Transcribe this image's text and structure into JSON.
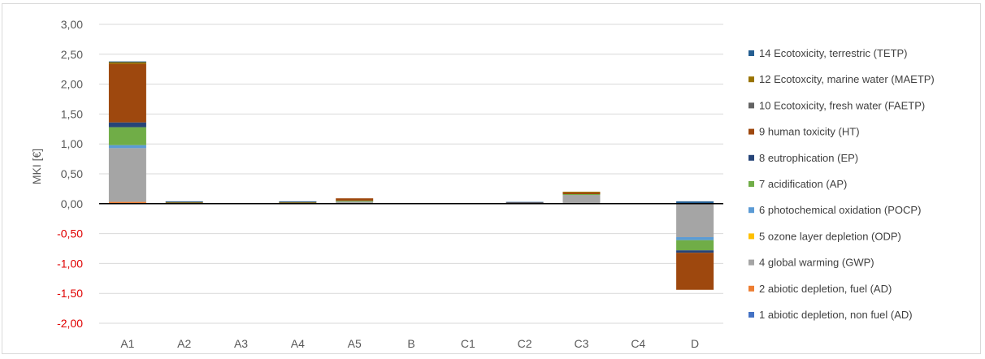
{
  "chart_data": {
    "type": "bar",
    "stacked": true,
    "ylabel": "MKI [€]",
    "ylim": [
      -2.0,
      3.0
    ],
    "yticks": [
      "3,00",
      "2,50",
      "2,00",
      "1,50",
      "1,00",
      "0,50",
      "0,00",
      "-0,50",
      "-1,00",
      "-1,50",
      "-2,00"
    ],
    "ytick_values": [
      3.0,
      2.5,
      2.0,
      1.5,
      1.0,
      0.5,
      0.0,
      -0.5,
      -1.0,
      -1.5,
      -2.0
    ],
    "negative_tick_color": "#e00000",
    "positive_tick_color": "#595959",
    "grid": true,
    "legend_position": "right",
    "categories": [
      "A1",
      "A2",
      "A3",
      "A4",
      "A5",
      "B",
      "C1",
      "C2",
      "C3",
      "C4",
      "D"
    ],
    "series": [
      {
        "name": "1 abiotic depletion, non fuel (AD)",
        "color": "#4472c4",
        "values": [
          0.0,
          0.0,
          0.0,
          0.0,
          0.0,
          0.0,
          0.0,
          0.0,
          0.0,
          0.0,
          0.0
        ]
      },
      {
        "name": "2 abiotic depletion, fuel (AD)",
        "color": "#ed7d31",
        "values": [
          0.03,
          0.0,
          0.0,
          0.0,
          0.0,
          0.0,
          0.0,
          0.0,
          0.0,
          0.0,
          -0.01
        ]
      },
      {
        "name": "4 global warming (GWP)",
        "color": "#a5a5a5",
        "values": [
          0.9,
          0.01,
          0.0,
          0.01,
          0.04,
          0.0,
          0.0,
          0.01,
          0.15,
          0.0,
          -0.55
        ]
      },
      {
        "name": "5 ozone layer depletion (ODP)",
        "color": "#ffc000",
        "values": [
          0.0,
          0.0,
          0.0,
          0.0,
          0.0,
          0.0,
          0.0,
          0.0,
          0.0,
          0.0,
          0.0
        ]
      },
      {
        "name": "6 photochemical oxidation (POCP)",
        "color": "#5b9bd5",
        "values": [
          0.05,
          0.0,
          0.0,
          0.0,
          0.0,
          0.0,
          0.0,
          0.0,
          0.0,
          0.0,
          -0.05
        ]
      },
      {
        "name": "7 acidification (AP)",
        "color": "#70ad47",
        "values": [
          0.3,
          0.01,
          0.0,
          0.01,
          0.01,
          0.0,
          0.0,
          0.0,
          0.01,
          0.0,
          -0.17
        ]
      },
      {
        "name": "8 eutrophication (EP)",
        "color": "#264478",
        "values": [
          0.08,
          0.0,
          0.0,
          0.0,
          0.0,
          0.0,
          0.0,
          0.0,
          0.0,
          0.0,
          -0.04
        ]
      },
      {
        "name": "9 human toxicity (HT)",
        "color": "#9e480e",
        "values": [
          0.98,
          0.01,
          0.0,
          0.01,
          0.04,
          0.0,
          0.0,
          0.01,
          0.03,
          0.0,
          -0.62
        ]
      },
      {
        "name": "10 Ecotoxicity, fresh water (FAETP)",
        "color": "#636363",
        "values": [
          0.0,
          0.0,
          0.0,
          0.0,
          0.0,
          0.0,
          0.0,
          0.0,
          0.0,
          0.0,
          0.0
        ]
      },
      {
        "name": "12 Ecotoxcity, marine water (MAETP)",
        "color": "#997300",
        "values": [
          0.03,
          0.0,
          0.0,
          0.0,
          0.0,
          0.0,
          0.0,
          0.0,
          0.01,
          0.0,
          0.0
        ]
      },
      {
        "name": "14 Ecotoxicity, terrestric (TETP)",
        "color": "#255e91",
        "values": [
          0.01,
          0.01,
          0.0,
          0.01,
          0.0,
          0.0,
          0.0,
          0.01,
          0.0,
          0.0,
          0.04
        ]
      }
    ]
  }
}
